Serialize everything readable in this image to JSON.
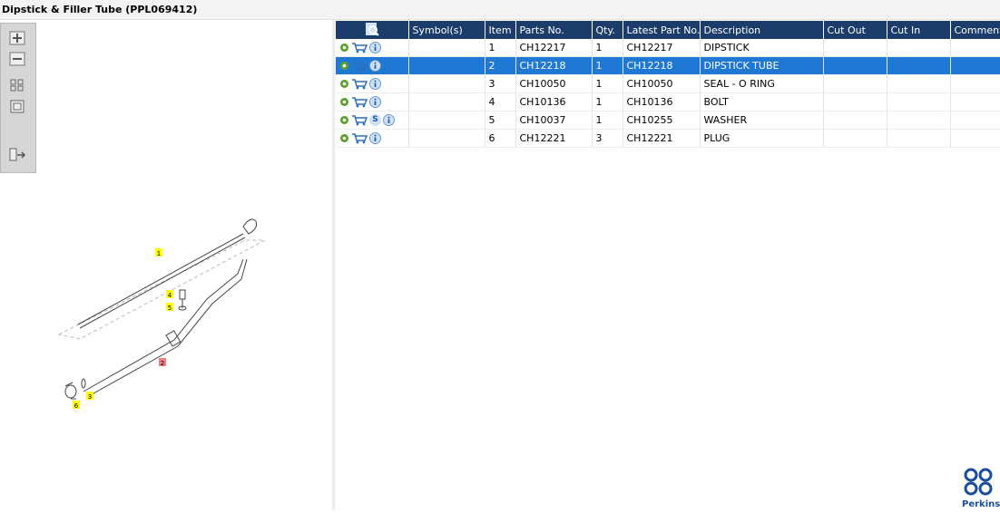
{
  "header": {
    "title": "Dipstick & Filler Tube (PPL069412)"
  },
  "table": {
    "columns": [
      "Symbol(s)",
      "Item",
      "Parts No.",
      "Qty.",
      "Latest Part No.",
      "Description",
      "Cut Out",
      "Cut In",
      "Comment"
    ],
    "rows": [
      {
        "cells": [
          "",
          "1",
          "CH12217",
          "1",
          "CH12217",
          "DIPSTICK",
          "",
          "",
          ""
        ]
      },
      {
        "cells": [
          "",
          "2",
          "CH12218",
          "1",
          "CH12218",
          "DIPSTICK TUBE",
          "",
          "",
          ""
        ],
        "selected": true
      },
      {
        "cells": [
          "",
          "3",
          "CH10050",
          "1",
          "CH10050",
          "SEAL - O RING",
          "",
          "",
          ""
        ]
      },
      {
        "cells": [
          "",
          "4",
          "CH10136",
          "1",
          "CH10136",
          "BOLT",
          "",
          "",
          ""
        ]
      },
      {
        "cells": [
          "",
          "5",
          "CH10037",
          "1",
          "CH10255",
          "WASHER",
          "",
          "",
          ""
        ],
        "badge": "S"
      },
      {
        "cells": [
          "",
          "6",
          "CH12221",
          "3",
          "CH12221",
          "PLUG",
          "",
          "",
          ""
        ]
      }
    ]
  },
  "diagram": {
    "callouts": [
      "1",
      "4",
      "5",
      "2",
      "3",
      "6"
    ]
  },
  "logo": {
    "text": "Perkins"
  }
}
